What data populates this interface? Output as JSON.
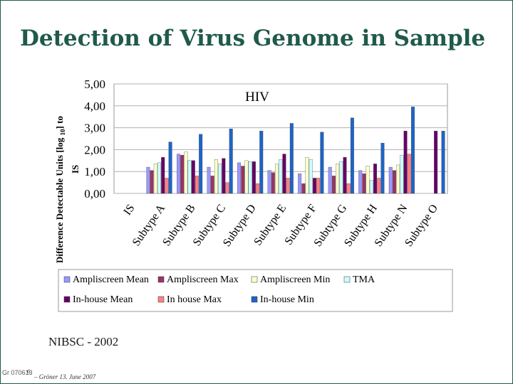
{
  "slide": {
    "title": "Detection of Virus Genome in Sample",
    "source": "NIBSC - 2002",
    "footer_id": "Gr 070613",
    "footer_page": "6",
    "footer_author": "– Gröner 13. June 2007"
  },
  "colors": {
    "title": "#1f5a4a",
    "plot_background": "#ffffff",
    "grid": "#b0b0b0"
  },
  "chart_data": {
    "type": "bar",
    "title": "HIV",
    "ylabel_main": "Difference Detectable Units [log",
    "ylabel_sub": "10",
    "ylabel_end": "] to",
    "ylabel_second": "IS",
    "ylim": [
      0,
      5
    ],
    "yticks": [
      "5,00",
      "4,00",
      "3,00",
      "2,00",
      "1,00",
      "0,00"
    ],
    "ytick_values": [
      5,
      4,
      3,
      2,
      1,
      0
    ],
    "grid": true,
    "legend_position": "bottom",
    "categories": [
      "IS",
      "Subtype A",
      "Subtype B",
      "Subtype C",
      "Subtype D",
      "Subtype E",
      "Subtype F",
      "Subtype G",
      "Subtype H",
      "Subtype N",
      "Subtype O"
    ],
    "series": [
      {
        "name": "Ampliscreen Mean",
        "color": "#9999ff",
        "values": [
          null,
          1.2,
          1.8,
          1.2,
          1.4,
          1.05,
          0.9,
          1.2,
          1.05,
          1.2,
          null
        ]
      },
      {
        "name": "Ampliscreen Max",
        "color": "#993366",
        "values": [
          null,
          1.05,
          1.75,
          0.8,
          1.25,
          0.95,
          0.45,
          0.8,
          0.9,
          1.05,
          null
        ]
      },
      {
        "name": "Ampliscreen Min",
        "color": "#ffffcc",
        "values": [
          null,
          1.35,
          1.9,
          1.55,
          1.5,
          1.35,
          1.65,
          1.35,
          1.25,
          1.3,
          null
        ]
      },
      {
        "name": "TMA",
        "color": "#ccffff",
        "values": [
          null,
          1.4,
          1.5,
          1.35,
          1.45,
          1.55,
          1.55,
          1.45,
          0.6,
          1.75,
          null
        ]
      },
      {
        "name": "In-house Mean",
        "color": "#660066",
        "values": [
          null,
          1.65,
          1.5,
          1.6,
          1.45,
          1.8,
          0.7,
          1.65,
          1.35,
          2.85,
          2.85
        ]
      },
      {
        "name": "In house Max",
        "color": "#ff8080",
        "values": [
          null,
          0.7,
          0.8,
          0.5,
          0.45,
          0.7,
          0.7,
          0.45,
          0.7,
          1.8,
          null
        ]
      },
      {
        "name": "In-house Min",
        "color": "#1e64c8",
        "values": [
          null,
          2.35,
          2.7,
          2.95,
          2.85,
          3.2,
          2.8,
          3.45,
          2.3,
          3.95,
          2.85
        ]
      }
    ]
  }
}
